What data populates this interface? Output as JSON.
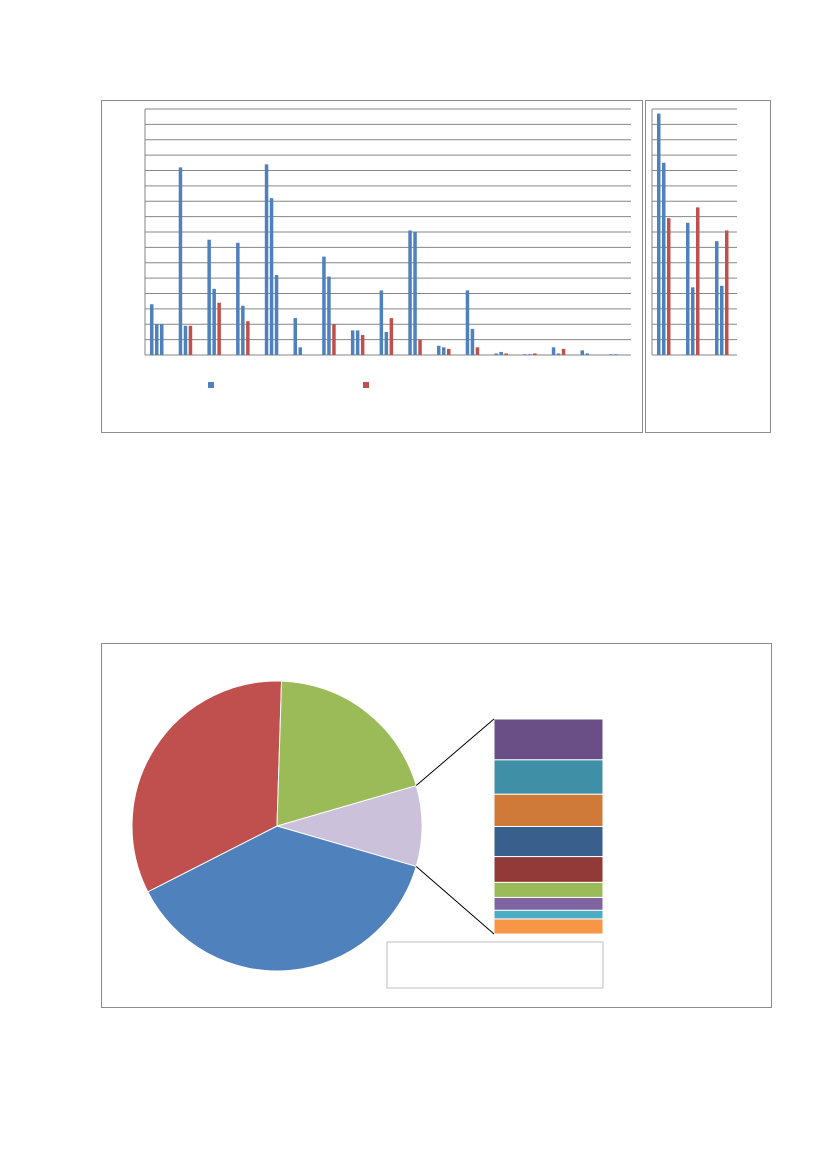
{
  "colors": {
    "series_blue": "#4f81bd",
    "series_red": "#c0504d",
    "gridline": "#868686",
    "panel_border": "#8c8c8c"
  },
  "chart_data": [
    {
      "type": "bar",
      "title": "",
      "xlabel": "",
      "ylabel": "",
      "ylim": [
        0,
        16
      ],
      "grid": true,
      "legend": "bottom",
      "groups": [
        {
          "values": [
            3.3,
            2.0,
            2.0
          ],
          "colors": [
            "blue",
            "blue",
            "blue"
          ]
        },
        {
          "values": [
            12.2,
            1.9,
            1.9
          ],
          "colors": [
            "blue",
            "blue",
            "red"
          ]
        },
        {
          "values": [
            7.5,
            4.3,
            3.4
          ],
          "colors": [
            "blue",
            "blue",
            "red"
          ]
        },
        {
          "values": [
            7.3,
            3.2,
            2.2
          ],
          "colors": [
            "blue",
            "blue",
            "red"
          ]
        },
        {
          "values": [
            12.4,
            10.2,
            5.2
          ],
          "colors": [
            "blue",
            "blue",
            "blue"
          ]
        },
        {
          "values": [
            2.4,
            0.5
          ],
          "colors": [
            "blue",
            "blue"
          ]
        },
        {
          "values": [
            6.4,
            5.1,
            2.0
          ],
          "colors": [
            "blue",
            "blue",
            "red"
          ]
        },
        {
          "values": [
            1.6,
            1.6,
            1.3
          ],
          "colors": [
            "blue",
            "blue",
            "red"
          ]
        },
        {
          "values": [
            4.2,
            1.5,
            2.4
          ],
          "colors": [
            "blue",
            "blue",
            "red"
          ]
        },
        {
          "values": [
            8.1,
            8.0,
            1.0
          ],
          "colors": [
            "blue",
            "blue",
            "red"
          ]
        },
        {
          "values": [
            0.6,
            0.5,
            0.4
          ],
          "colors": [
            "blue",
            "blue",
            "red"
          ]
        },
        {
          "values": [
            4.2,
            1.7,
            0.5
          ],
          "colors": [
            "blue",
            "blue",
            "red"
          ]
        },
        {
          "values": [
            0.1,
            0.2,
            0.1
          ],
          "colors": [
            "blue",
            "blue",
            "red"
          ]
        },
        {
          "values": [
            0.05,
            0.05,
            0.1
          ],
          "colors": [
            "blue",
            "blue",
            "red"
          ]
        },
        {
          "values": [
            0.5,
            0.1,
            0.4
          ],
          "colors": [
            "blue",
            "blue",
            "red"
          ]
        },
        {
          "values": [
            0.3,
            0.1
          ],
          "colors": [
            "blue",
            "blue"
          ]
        },
        {
          "values": [
            0.05,
            0.05
          ],
          "colors": [
            "blue",
            "blue"
          ]
        }
      ],
      "series": [
        {
          "name": "",
          "color": "blue"
        },
        {
          "name": "",
          "color": "red"
        }
      ]
    },
    {
      "type": "bar",
      "title": "",
      "ylim": [
        0,
        16
      ],
      "grid": true,
      "groups": [
        {
          "values": [
            15.7,
            12.5,
            8.9
          ],
          "colors": [
            "blue",
            "blue",
            "red"
          ]
        },
        {
          "values": [
            8.6,
            4.4,
            9.6
          ],
          "colors": [
            "blue",
            "blue",
            "red"
          ]
        },
        {
          "values": [
            7.4,
            4.5,
            8.1
          ],
          "colors": [
            "blue",
            "blue",
            "red"
          ]
        }
      ]
    },
    {
      "type": "pie",
      "title": "",
      "slices": [
        {
          "label": "",
          "value": 38,
          "color": "#4f81bd"
        },
        {
          "label": "",
          "value": 33,
          "color": "#c0504d"
        },
        {
          "label": "",
          "value": 20,
          "color": "#9bbb59"
        },
        {
          "label": "",
          "value": 9,
          "color": "#ccc1da"
        }
      ],
      "breakout_of": 3,
      "breakout": [
        {
          "value": 19,
          "color": "#6a4f86"
        },
        {
          "value": 16,
          "color": "#3f90a6"
        },
        {
          "value": 15,
          "color": "#cf7a39"
        },
        {
          "value": 14,
          "color": "#395f8d"
        },
        {
          "value": 12,
          "color": "#923a38"
        },
        {
          "value": 7,
          "color": "#9bbb59"
        },
        {
          "value": 6,
          "color": "#8064a2"
        },
        {
          "value": 4,
          "color": "#4bacc6"
        },
        {
          "value": 7,
          "color": "#f79646"
        }
      ],
      "legend": "bottom-right"
    }
  ]
}
